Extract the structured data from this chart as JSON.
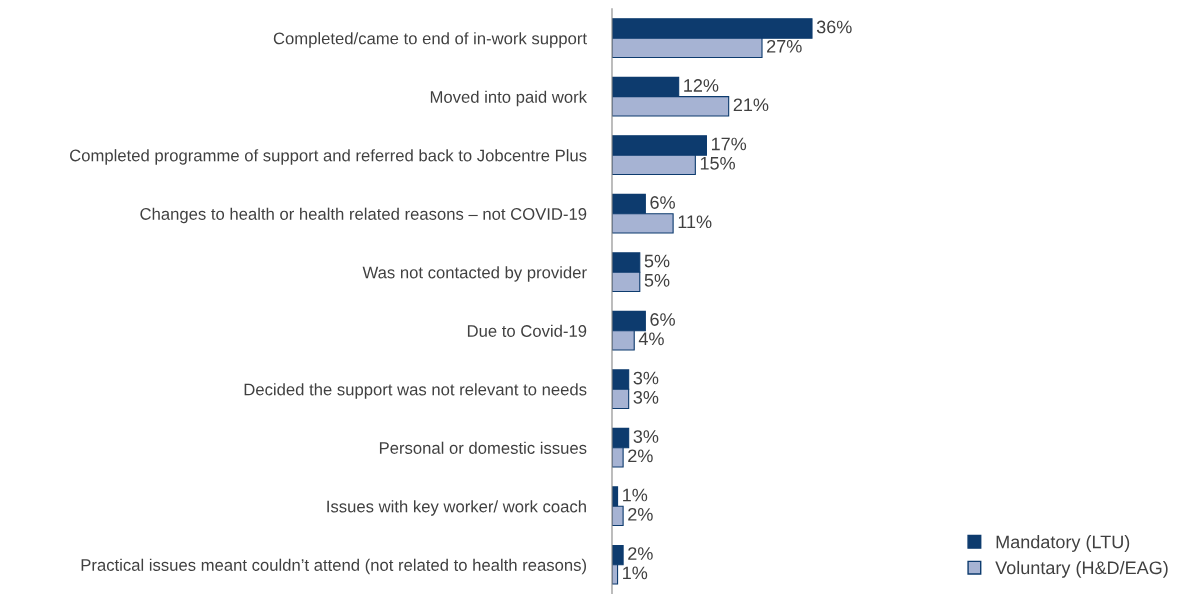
{
  "chart_data": {
    "type": "bar",
    "orientation": "horizontal",
    "categories": [
      "Completed/came to end of in-work support",
      "Moved into paid work",
      "Completed programme of support and referred back to Jobcentre Plus",
      "Changes to health or health related reasons – not COVID-19",
      "Was not contacted by provider",
      "Due to Covid-19",
      "Decided the support was not relevant to needs",
      "Personal or domestic issues",
      "Issues with key worker/ work coach",
      "Practical issues meant couldn’t attend (not related to health reasons)"
    ],
    "series": [
      {
        "name": "Mandatory (LTU)",
        "color": "#0d3b6e",
        "values": [
          36,
          12,
          17,
          6,
          5,
          6,
          3,
          3,
          1,
          2
        ],
        "value_labels": [
          "36%",
          "12%",
          "17%",
          "6%",
          "5%",
          "6%",
          "3%",
          "3%",
          "1%",
          "2%"
        ]
      },
      {
        "name": "Voluntary (H&D/EAG)",
        "color": "#a6b3d3",
        "values": [
          27,
          21,
          15,
          11,
          5,
          4,
          3,
          2,
          2,
          1
        ],
        "value_labels": [
          "27%",
          "21%",
          "15%",
          "11%",
          "5%",
          "4%",
          "3%",
          "2%",
          "2%",
          "1%"
        ]
      }
    ],
    "legend": "bottom right"
  }
}
